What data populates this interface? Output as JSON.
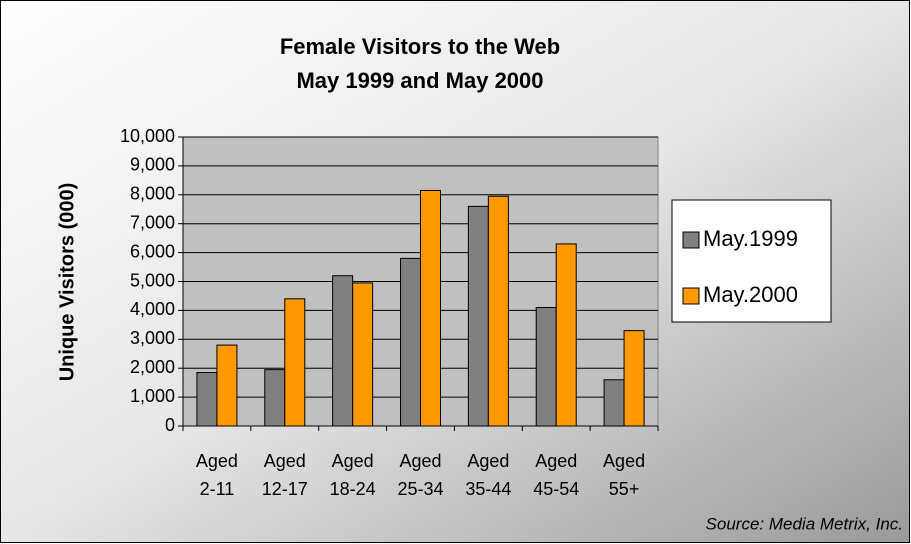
{
  "chart_data": {
    "type": "bar",
    "title": "Female Visitors to the Web",
    "subtitle": "May 1999 and May 2000",
    "y_label": "Unique Visitors (000)",
    "source": "Source:  Media Metrix, Inc.",
    "categories": [
      "Aged 2-11",
      "Aged 12-17",
      "Aged 18-24",
      "Aged 25-34",
      "Aged 35-44",
      "Aged 45-54",
      "Aged 55+"
    ],
    "series": [
      {
        "name": "May.1999",
        "color": "#808080",
        "values": [
          1850,
          1950,
          5200,
          5800,
          7600,
          4100,
          1600
        ]
      },
      {
        "name": "May.2000",
        "color": "#ff9900",
        "values": [
          2800,
          4400,
          4950,
          8150,
          7950,
          6300,
          3300
        ]
      }
    ],
    "ylim": [
      0,
      10000
    ],
    "yticks": [
      0,
      {
        "value": 1000,
        "label": "1,000"
      },
      {
        "value": 2000,
        "label": "2,000"
      },
      {
        "value": 3000,
        "label": "3,000"
      },
      {
        "value": 4000,
        "label": "4,000"
      },
      {
        "value": 5000,
        "label": "5,000"
      },
      {
        "value": 6000,
        "label": "6,000"
      },
      {
        "value": 7000,
        "label": "7,000"
      },
      {
        "value": 8000,
        "label": "8,000"
      },
      {
        "value": 9000,
        "label": "9,000"
      },
      {
        "value": 10000,
        "label": "10,000"
      }
    ],
    "grid": true,
    "legend": "right"
  }
}
